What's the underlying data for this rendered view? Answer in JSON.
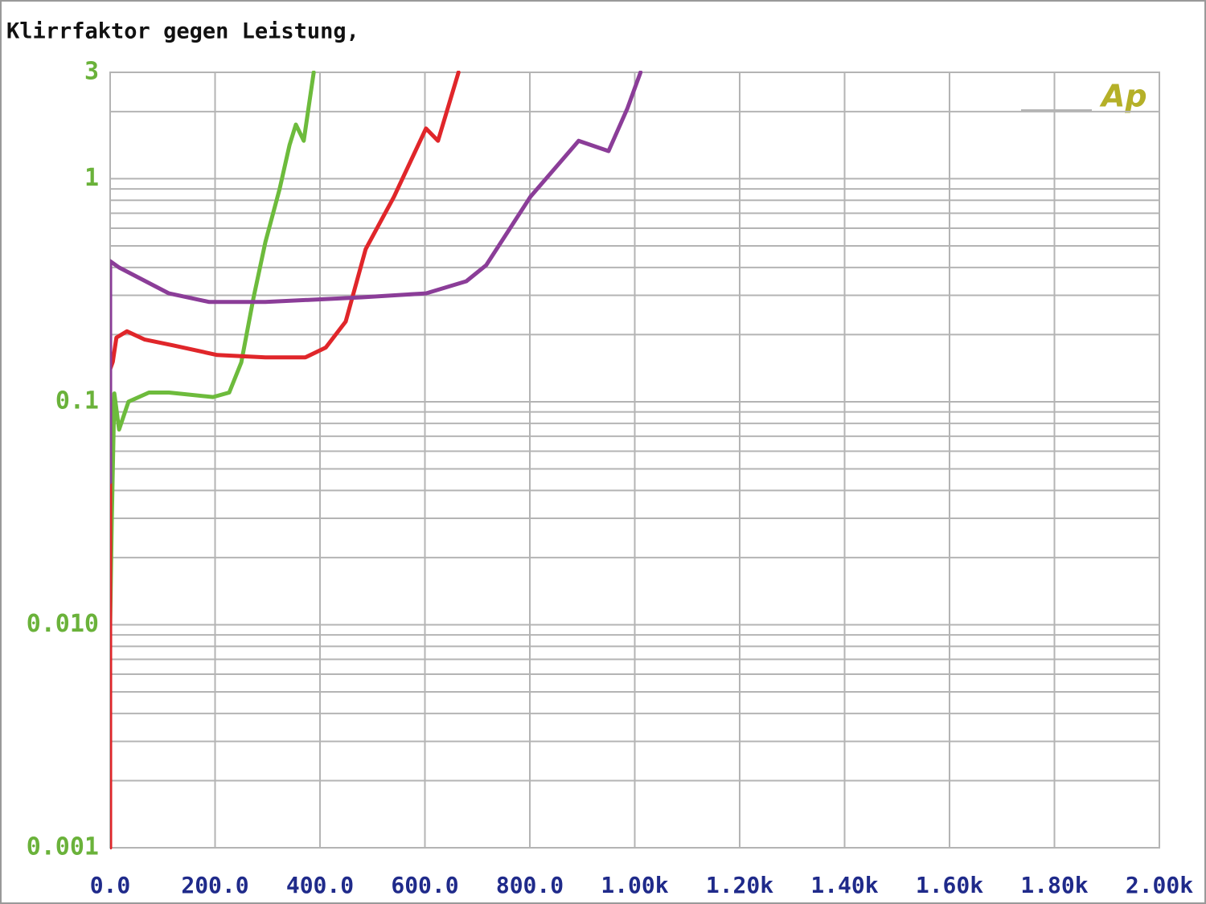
{
  "chart_data": {
    "type": "line",
    "title": "Klirrfaktor gegen Leistung,",
    "logo": "Ap",
    "log_y": true,
    "grid": true,
    "xlim": [
      0,
      2000
    ],
    "xticks": [
      {
        "value": 0,
        "label": "0.0"
      },
      {
        "value": 200,
        "label": "200.0"
      },
      {
        "value": 400,
        "label": "400.0"
      },
      {
        "value": 600,
        "label": "600.0"
      },
      {
        "value": 800,
        "label": "800.0"
      },
      {
        "value": 1000,
        "label": "1.00k"
      },
      {
        "value": 1200,
        "label": "1.20k"
      },
      {
        "value": 1400,
        "label": "1.40k"
      },
      {
        "value": 1600,
        "label": "1.60k"
      },
      {
        "value": 1800,
        "label": "1.80k"
      },
      {
        "value": 2000,
        "label": "2.00k"
      }
    ],
    "ylim": [
      0.001,
      3
    ],
    "yticks": [
      0.001,
      {
        "value": 0.01,
        "label": "0.010"
      },
      0.1,
      1,
      3
    ],
    "series": [
      {
        "color": "#6dbb3c",
        "x": [
          0,
          3,
          8,
          17,
          35,
          74,
          112,
          196,
          227,
          250,
          273,
          296,
          323,
          342,
          354,
          369,
          388
        ],
        "values": [
          0.01,
          0.029,
          0.109,
          0.075,
          0.1,
          0.11,
          0.11,
          0.105,
          0.11,
          0.15,
          0.29,
          0.52,
          0.9,
          1.42,
          1.75,
          1.48,
          3
        ]
      },
      {
        "color": "#e0262a",
        "x": [
          0,
          0,
          5,
          12,
          32,
          66,
          120,
          204,
          296,
          372,
          411,
          449,
          487,
          541,
          602,
          625,
          664
        ],
        "values": [
          0.001,
          0.14,
          0.151,
          0.194,
          0.207,
          0.19,
          0.179,
          0.162,
          0.158,
          0.158,
          0.175,
          0.229,
          0.483,
          0.83,
          1.68,
          1.48,
          3
        ]
      },
      {
        "color": "#8b3d98",
        "x": [
          0,
          0,
          17,
          112,
          189,
          296,
          480,
          602,
          679,
          717,
          801,
          893,
          950,
          986,
          1011
        ],
        "values": [
          0.0436,
          0.427,
          0.4,
          0.306,
          0.28,
          0.28,
          0.294,
          0.306,
          0.347,
          0.41,
          0.83,
          1.48,
          1.33,
          2.07,
          3
        ]
      }
    ]
  }
}
